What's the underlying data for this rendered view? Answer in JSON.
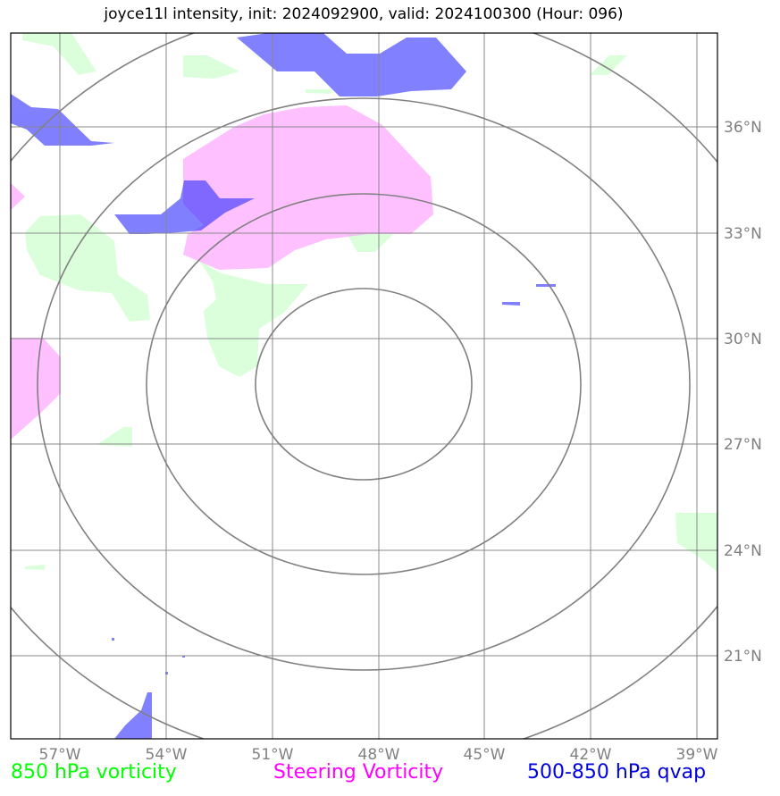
{
  "title": "joyce11l intensity, init: 2024092900, valid: 2024100300 (Hour: 096)",
  "map": {
    "longitude_labels": [
      "57°W",
      "54°W",
      "51°W",
      "48°W",
      "45°W",
      "42°W",
      "39°W"
    ],
    "latitude_labels": [
      "36°N",
      "33°N",
      "30°N",
      "27°N",
      "24°N",
      "21°N"
    ],
    "colors": {
      "vorticity_850": "#ccffcc",
      "steering_vorticity": "#ff99ff",
      "qvap": "#3333ff",
      "grid": "#888888",
      "range_rings": "#808080"
    }
  },
  "legend": {
    "vorticity_850": {
      "label": "850 hPa vorticity",
      "color": "#00ff00"
    },
    "steering": {
      "label": "Steering Vorticity",
      "color": "#ff00ff"
    },
    "qvap": {
      "label": "500-850 hPa qvap",
      "color": "#0000dd"
    }
  }
}
